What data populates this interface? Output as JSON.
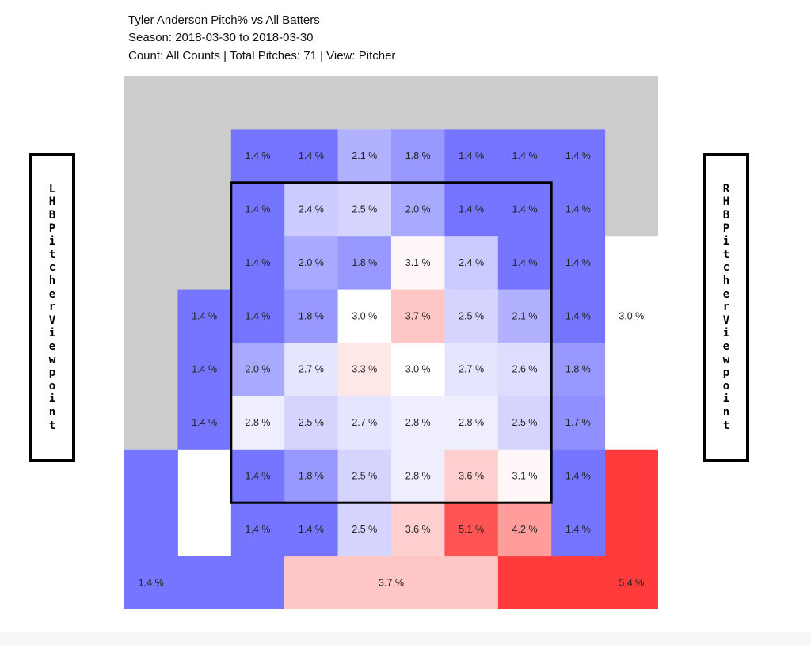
{
  "header": {
    "line1": "Tyler Anderson Pitch% vs All Batters",
    "line2": "Season: 2018-03-30 to 2018-03-30",
    "line3": "Count: All Counts | Total Pitches: 71 | View: Pitcher"
  },
  "left_label": "LHB Pitcher Viewpoint",
  "right_label": "RHB Pitcher Viewpoint",
  "colors": {
    "background_zone": "#cccccc",
    "low": "#7575ff",
    "mid": "#ffffff",
    "high": "#ff3b3b",
    "strike_zone_border": "#000000"
  },
  "chart_data": {
    "type": "heatmap",
    "unit": "%",
    "inner_grid": {
      "rows": 8,
      "cols": 7,
      "values": [
        [
          1.4,
          1.4,
          2.1,
          1.8,
          1.4,
          1.4,
          1.4
        ],
        [
          1.4,
          2.4,
          2.5,
          2.0,
          1.4,
          1.4,
          1.4
        ],
        [
          1.4,
          2.0,
          1.8,
          3.1,
          2.4,
          1.4,
          1.4
        ],
        [
          1.4,
          1.8,
          3.0,
          3.7,
          2.5,
          2.1,
          1.4
        ],
        [
          2.0,
          2.7,
          3.3,
          3.0,
          2.7,
          2.6,
          1.8
        ],
        [
          2.8,
          2.5,
          2.7,
          2.8,
          2.8,
          2.5,
          1.7
        ],
        [
          1.4,
          1.8,
          2.5,
          2.8,
          3.6,
          3.1,
          1.4
        ],
        [
          1.4,
          1.4,
          2.5,
          3.6,
          5.1,
          4.2,
          1.4
        ]
      ]
    },
    "outer_cells": [
      {
        "id": "left-upper",
        "value": 1.4,
        "labels": [
          "1.4 %",
          "1.4 %",
          "1.4 %"
        ]
      },
      {
        "id": "right-middle",
        "value": 3.0,
        "labels": [
          "3.0 %"
        ]
      },
      {
        "id": "bottom-left",
        "value": 1.4,
        "labels": [
          "1.4 %"
        ]
      },
      {
        "id": "bottom-center",
        "value": 3.7,
        "labels": [
          "3.7 %"
        ]
      },
      {
        "id": "bottom-right",
        "value": 5.4,
        "labels": [
          "5.4 %"
        ]
      }
    ],
    "strike_zone": {
      "row_start": 1,
      "row_end": 6,
      "col_start": 0,
      "col_end": 5
    }
  }
}
